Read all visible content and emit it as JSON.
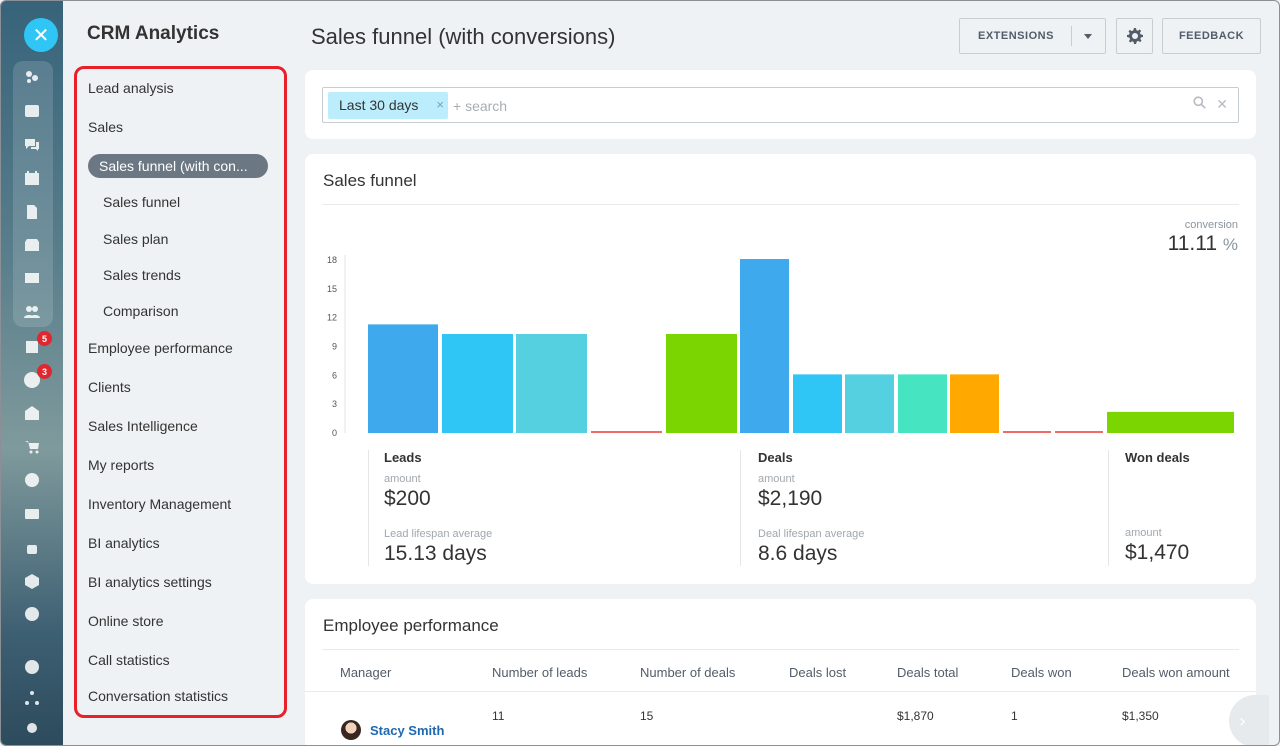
{
  "app": {
    "section_title": "CRM Analytics",
    "close_glyph": "✕"
  },
  "rail": {
    "icons": [
      "activity-icon",
      "feed-icon",
      "chat-icon",
      "calendar-icon",
      "docs-icon",
      "drive-icon",
      "mail-icon",
      "groups-icon",
      "tasks-icon",
      "crm-icon",
      "sites-icon",
      "store-icon",
      "target-icon",
      "contacts-icon",
      "automation-icon",
      "box-icon",
      "more-icon",
      "help-icon",
      "network-icon",
      "settings-icon"
    ],
    "badges": {
      "tasks": "5",
      "crm": "3"
    }
  },
  "subnav": {
    "items": [
      {
        "label": "Lead analysis",
        "level": 0
      },
      {
        "label": "Sales",
        "level": 0
      },
      {
        "label": "Sales funnel (with con...",
        "level": 1,
        "active": true
      },
      {
        "label": "Sales funnel",
        "level": 1
      },
      {
        "label": "Sales plan",
        "level": 1
      },
      {
        "label": "Sales trends",
        "level": 1
      },
      {
        "label": "Comparison",
        "level": 1
      },
      {
        "label": "Employee performance",
        "level": 0
      },
      {
        "label": "Clients",
        "level": 0
      },
      {
        "label": "Sales Intelligence",
        "level": 0
      },
      {
        "label": "My reports",
        "level": 0
      },
      {
        "label": "Inventory Management",
        "level": 0
      },
      {
        "label": "BI analytics",
        "level": 0
      },
      {
        "label": "BI analytics settings",
        "level": 0
      },
      {
        "label": "Online store",
        "level": 0
      },
      {
        "label": "Call statistics",
        "level": 0
      },
      {
        "label": "Conversation statistics",
        "level": 0
      }
    ]
  },
  "header": {
    "title": "Sales funnel (with conversions)",
    "extensions_label": "EXTENSIONS",
    "feedback_label": "FEEDBACK"
  },
  "filter": {
    "chip_label": "Last 30 days",
    "chip_remove": "×",
    "placeholder": "+ search",
    "clear_glyph": "✕"
  },
  "funnel": {
    "title": "Sales funnel",
    "conversion_label": "conversion",
    "conversion_value": "11.11",
    "conversion_unit": "%",
    "stats": {
      "leads": {
        "title": "Leads",
        "amount_label": "amount",
        "amount": "$200",
        "lifespan_label": "Lead lifespan average",
        "lifespan": "15.13 days"
      },
      "deals": {
        "title": "Deals",
        "amount_label": "amount",
        "amount": "$2,190",
        "lifespan_label": "Deal lifespan average",
        "lifespan": "8.6 days"
      },
      "won": {
        "title": "Won deals",
        "amount_label": "amount",
        "amount": "$1,470"
      }
    }
  },
  "chart_data": {
    "type": "bar",
    "ylim": [
      0,
      18
    ],
    "yticks": [
      0,
      3,
      6,
      9,
      12,
      15,
      18
    ],
    "bars": [
      {
        "value": 11.3,
        "color": "#3ea9ec"
      },
      {
        "value": 10.3,
        "color": "#2fc6f6"
      },
      {
        "value": 10.3,
        "color": "#55d0e0"
      },
      {
        "value": 0.15,
        "color": "#f06a6a"
      },
      {
        "value": 10.3,
        "color": "#7bd500"
      },
      {
        "value": 18.1,
        "color": "#3ea9ec"
      },
      {
        "value": 6.1,
        "color": "#2fc6f6"
      },
      {
        "value": 6.1,
        "color": "#55d0e0"
      },
      {
        "value": 6.1,
        "color": "#47e4c2"
      },
      {
        "value": 6.1,
        "color": "#ffa900"
      },
      {
        "value": 0.15,
        "color": "#f06a6a"
      },
      {
        "value": 0.15,
        "color": "#f06a6a"
      },
      {
        "value": 2.2,
        "color": "#7bd500"
      }
    ]
  },
  "employee": {
    "title": "Employee performance",
    "columns": [
      "Manager",
      "Number of leads",
      "Number of deals",
      "Deals lost",
      "Deals total",
      "Deals won",
      "Deals won amount"
    ],
    "rows": [
      {
        "manager": "Stacy Smith",
        "leads": "11",
        "deals": "15",
        "lost": "",
        "total": "$1,870",
        "won": "1",
        "won_amount": "$1,350"
      }
    ]
  }
}
